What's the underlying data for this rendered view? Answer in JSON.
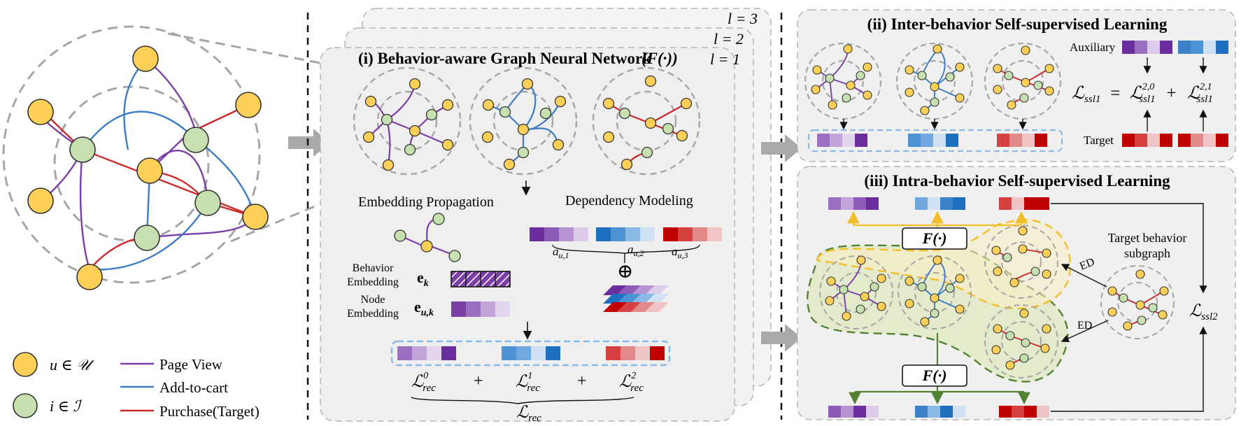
{
  "colors": {
    "user": "#ffd057",
    "item": "#c7e0b0",
    "page_view": "#7b3fa6",
    "add_to_cart": "#3b7cc4",
    "purchase": "#c92a2a",
    "panel_bg": "#f0f0f0",
    "panel_border": "#b0b0b0",
    "arrow": "#a9a9a9",
    "yellow_line": "#f2be29",
    "green_line": "#548235"
  },
  "legend": {
    "user": "u ∈ 𝒰",
    "item": "i ∈ ℐ",
    "page_view": "Page View",
    "add_to_cart": "Add-to-cart",
    "purchase": "Purchase(Target)"
  },
  "panel_i": {
    "title": "(i) Behavior-aware Graph Neural Network",
    "func": "(F(·))",
    "layers": [
      "l = 3",
      "l = 2",
      "l = 1"
    ],
    "embedding_propagation": "Embedding Propagation",
    "dependency_modeling": "Dependency Modeling",
    "behavior_embedding": [
      "Behavior",
      "Embedding"
    ],
    "node_embedding": [
      "Node",
      "Embedding"
    ],
    "e_k": "e",
    "e_k_sub": "k",
    "e_uk": "e",
    "e_uk_sub": "u,k",
    "weights": [
      "a",
      "a",
      "a"
    ],
    "weight_subs": [
      "u,1",
      "u,2",
      "u,3"
    ],
    "oplus": "⊕",
    "loss_terms": [
      "ℒ",
      "ℒ",
      "ℒ"
    ],
    "loss_subs": [
      "rec",
      "rec",
      "rec"
    ],
    "loss_sups": [
      "0",
      "1",
      "2"
    ],
    "plus": "+",
    "loss_total": "ℒ",
    "loss_total_sub": "rec"
  },
  "panel_ii": {
    "title": "(ii) Inter-behavior Self-supervised Learning",
    "auxiliary": "Auxiliary",
    "target": "Target",
    "eq_lhs": "ℒ",
    "eq_lhs_sub": "ssl1",
    "eq_eq": "=",
    "eq_t1": "ℒ",
    "eq_t1_sup": "2,0",
    "eq_t1_sub": "ssl1",
    "eq_plus": "+",
    "eq_t2": "ℒ",
    "eq_t2_sup": "2,1",
    "eq_t2_sub": "ssl1"
  },
  "panel_iii": {
    "title": "(iii) Intra-behavior Self-supervised Learning",
    "func": "F(·)",
    "target_subgraph": [
      "Target behavior",
      "subgraph"
    ],
    "ed": "ED",
    "loss": "ℒ",
    "loss_sub": "ssl2"
  }
}
